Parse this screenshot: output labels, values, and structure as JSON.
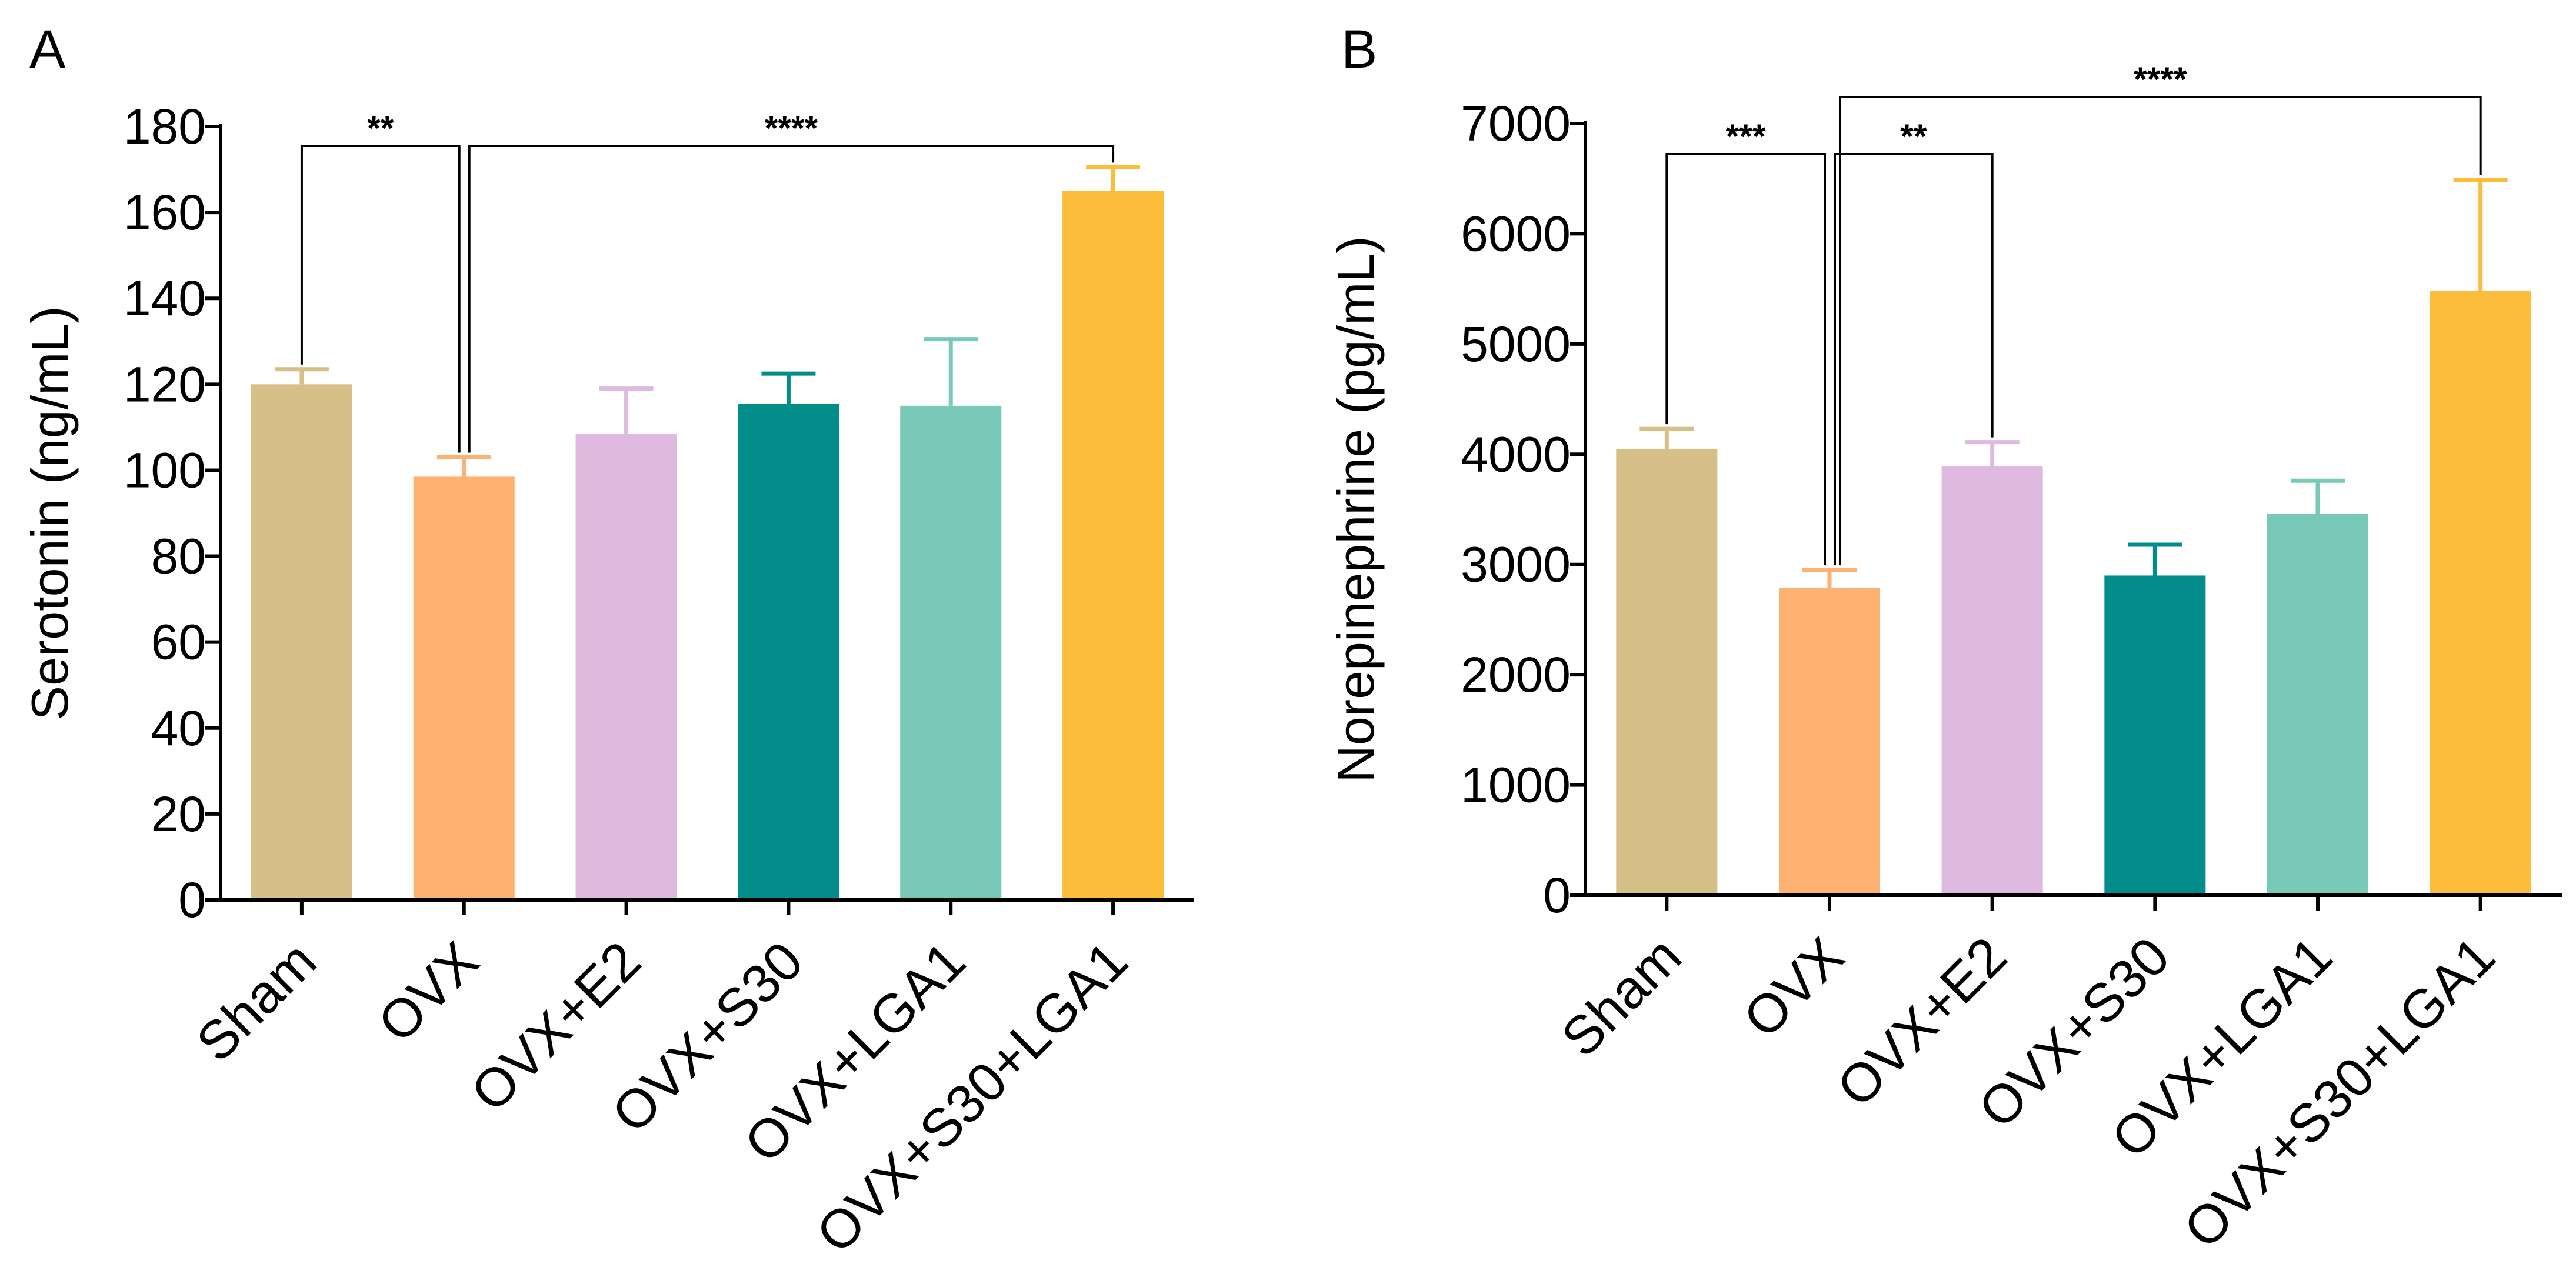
{
  "chart_data": [
    {
      "type": "bar",
      "panel": "A",
      "title": "",
      "xlabel": "",
      "ylabel": "Serotonin (ng/mL)",
      "ylim": [
        0,
        180
      ],
      "yticks": [
        0,
        20,
        40,
        60,
        80,
        100,
        120,
        140,
        160,
        180
      ],
      "categories": [
        "Sham",
        "OVX",
        "OVX+E2",
        "OVX+S30",
        "OVX+LGA1",
        "OVX+S30+LGA1"
      ],
      "values": [
        120,
        98.5,
        108.5,
        115.5,
        115,
        165
      ],
      "errors": [
        3.5,
        4.5,
        10.5,
        7,
        15.5,
        5.5
      ],
      "colors": [
        "#D7C088",
        "#FDB272",
        "#DEBAE0",
        "#028C8A",
        "#79C9B8",
        "#FCBE3A"
      ],
      "significance": [
        {
          "from": 0,
          "to": 1,
          "label": "**"
        },
        {
          "from": 1,
          "to": 5,
          "label": "****"
        }
      ]
    },
    {
      "type": "bar",
      "panel": "B",
      "title": "",
      "xlabel": "",
      "ylabel": "Norepinephrine (pg/mL)",
      "ylim": [
        0,
        7000
      ],
      "yticks": [
        0,
        1000,
        2000,
        3000,
        4000,
        5000,
        6000,
        7000
      ],
      "categories": [
        "Sham",
        "OVX",
        "OVX+E2",
        "OVX+S30",
        "OVX+LGA1",
        "OVX+S30+LGA1"
      ],
      "values": [
        4050,
        2790,
        3890,
        2900,
        3460,
        5480
      ],
      "errors": [
        180,
        160,
        220,
        280,
        300,
        1010
      ],
      "colors": [
        "#D7C088",
        "#FDB272",
        "#DEBAE0",
        "#028C8A",
        "#79C9B8",
        "#FCBE3A"
      ],
      "significance": [
        {
          "from": 0,
          "to": 1,
          "label": "***"
        },
        {
          "from": 1,
          "to": 2,
          "label": "**"
        },
        {
          "from": 1,
          "to": 5,
          "label": "****"
        }
      ]
    }
  ]
}
